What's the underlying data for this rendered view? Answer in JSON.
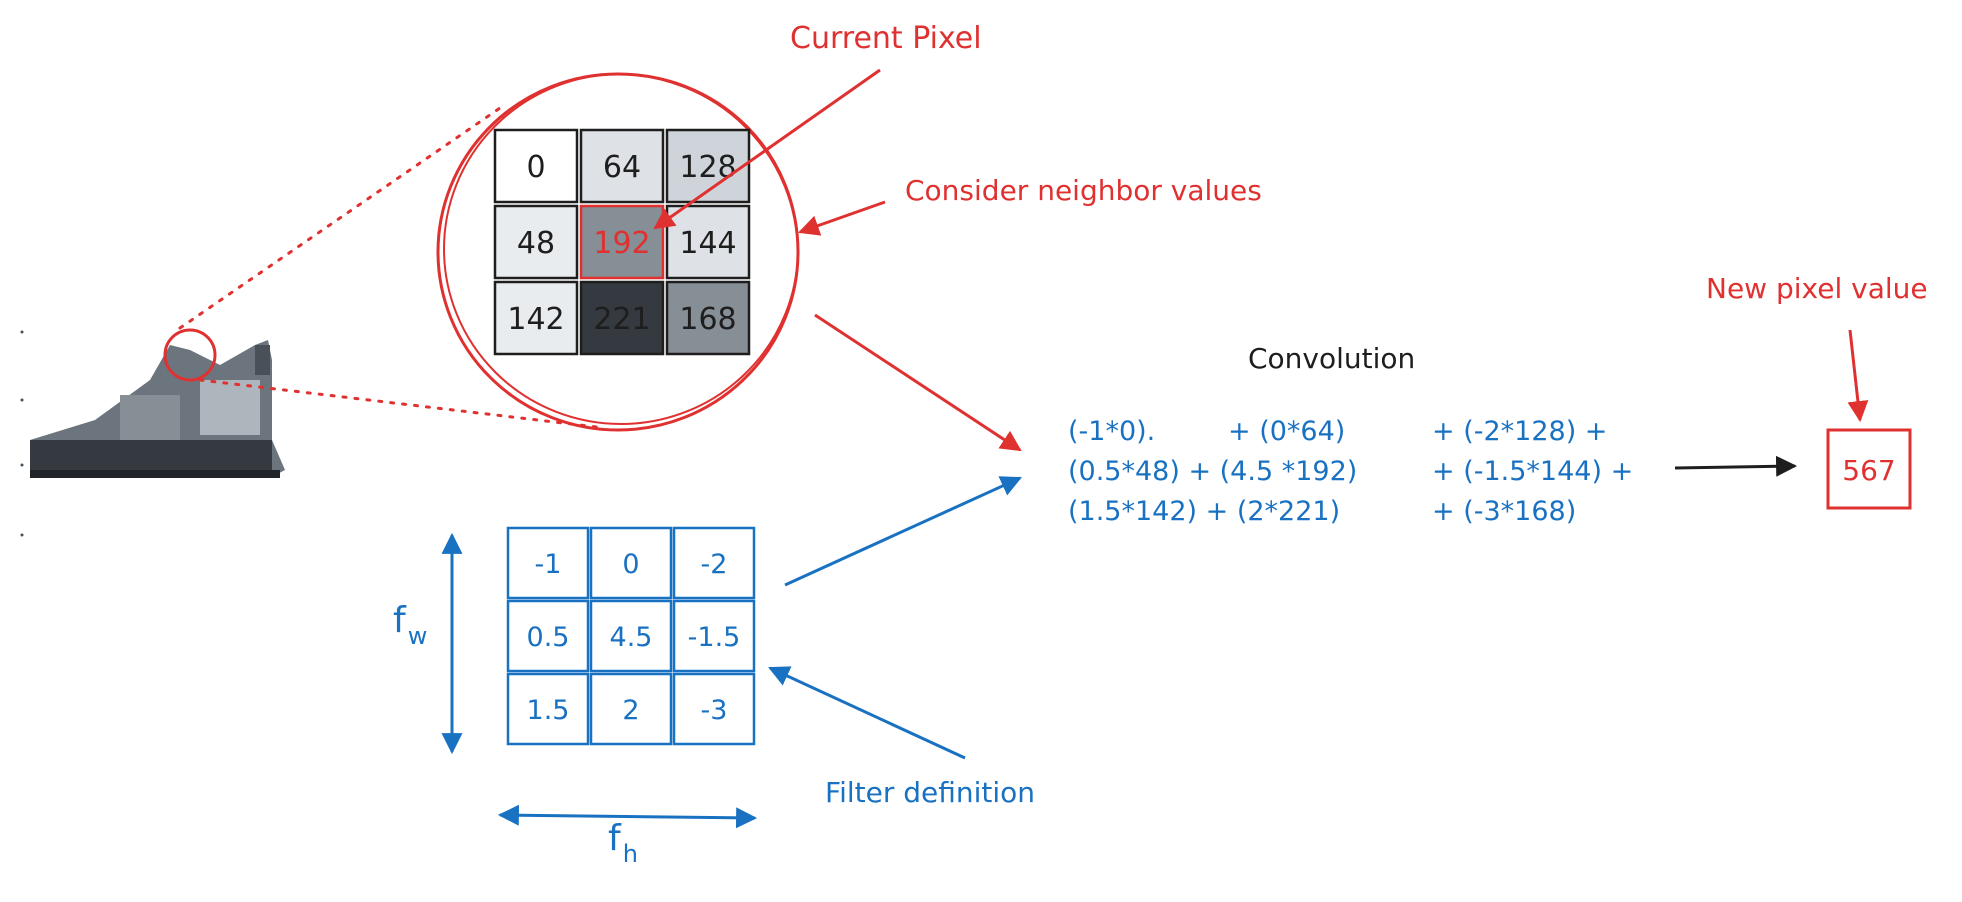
{
  "labels": {
    "current_pixel": "Current Pixel",
    "consider_neighbors": "Consider neighbor values",
    "new_pixel_value": "New pixel value",
    "convolution": "Convolution",
    "filter_definition": "Filter definition",
    "f_w": "f",
    "f_w_sub": "w",
    "f_h": "f",
    "f_h_sub": "h"
  },
  "pixel_grid": {
    "values": [
      "0",
      "64",
      "128",
      "48",
      "192",
      "144",
      "142",
      "221",
      "168"
    ],
    "shades": [
      "#ffffff",
      "#dee2e6",
      "#ced4da",
      "#e9ecef",
      "#868e96",
      "#dee2e6",
      "#e9ecef",
      "#343a40",
      "#868e96"
    ],
    "text_colors": [
      "#1e1e1e",
      "#1e1e1e",
      "#1e1e1e",
      "#1e1e1e",
      "#e03131",
      "#1e1e1e",
      "#1e1e1e",
      "#1e1e1e",
      "#1e1e1e"
    ]
  },
  "filter_grid": {
    "values": [
      "-1",
      "0",
      "-2",
      "0.5",
      "4.5",
      "-1.5",
      "1.5",
      "2",
      "-3"
    ]
  },
  "equation": {
    "rows": [
      [
        "(-1*0).",
        "+ (0*64)",
        "+ (-2*128) +"
      ],
      [
        "(0.5*48) + (4.5 *192)",
        "+ (-1.5*144) +",
        ""
      ],
      [
        "(1.5*142) + (2*221)",
        "+ (-3*168)",
        ""
      ]
    ]
  },
  "result": {
    "value": "567"
  },
  "colors": {
    "red": "#e03131",
    "blue": "#1971c2",
    "dark": "#1e1e1e"
  }
}
